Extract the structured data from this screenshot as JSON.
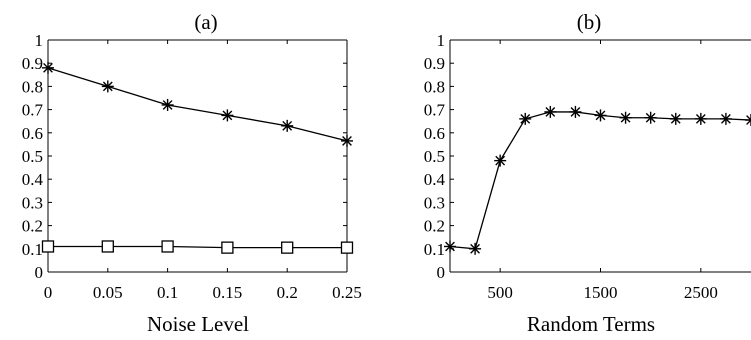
{
  "chart_data": [
    {
      "type": "line",
      "title": "(a)",
      "xlabel": "Noise Level",
      "ylabel": "",
      "xlim": [
        0,
        0.25
      ],
      "ylim": [
        0,
        1
      ],
      "x": [
        0,
        0.05,
        0.1,
        0.15,
        0.2,
        0.25
      ],
      "x_ticks": [
        "0",
        "0.05",
        "0.1",
        "0.15",
        "0.2",
        "0.25"
      ],
      "y_ticks": [
        "0",
        "0.1",
        "0.2",
        "0.3",
        "0.4",
        "0.5",
        "0.6",
        "0.7",
        "0.8",
        "0.9",
        "1"
      ],
      "grid": false,
      "series": [
        {
          "marker": "asterisk",
          "values": [
            0.88,
            0.8,
            0.72,
            0.675,
            0.63,
            0.565
          ]
        },
        {
          "marker": "square",
          "values": [
            0.11,
            0.11,
            0.11,
            0.105,
            0.105,
            0.105
          ]
        }
      ]
    },
    {
      "type": "line",
      "title": "(b)",
      "xlabel": "Random Terms",
      "ylabel": "",
      "xlim": [
        0,
        3000
      ],
      "ylim": [
        0,
        1
      ],
      "x_ticks": [
        "500",
        "1500",
        "2500"
      ],
      "x_tick_values": [
        500,
        1500,
        2500
      ],
      "y_ticks": [
        "0",
        "0.1",
        "0.2",
        "0.3",
        "0.4",
        "0.5",
        "0.6",
        "0.7",
        "0.8",
        "0.9",
        "1"
      ],
      "grid": false,
      "series": [
        {
          "marker": "asterisk",
          "x": [
            0,
            250,
            500,
            750,
            1000,
            1250,
            1500,
            1750,
            2000,
            2250,
            2500,
            2750,
            3000
          ],
          "values": [
            0.11,
            0.1,
            0.48,
            0.66,
            0.69,
            0.69,
            0.675,
            0.665,
            0.665,
            0.66,
            0.66,
            0.66,
            0.655
          ]
        }
      ]
    }
  ]
}
